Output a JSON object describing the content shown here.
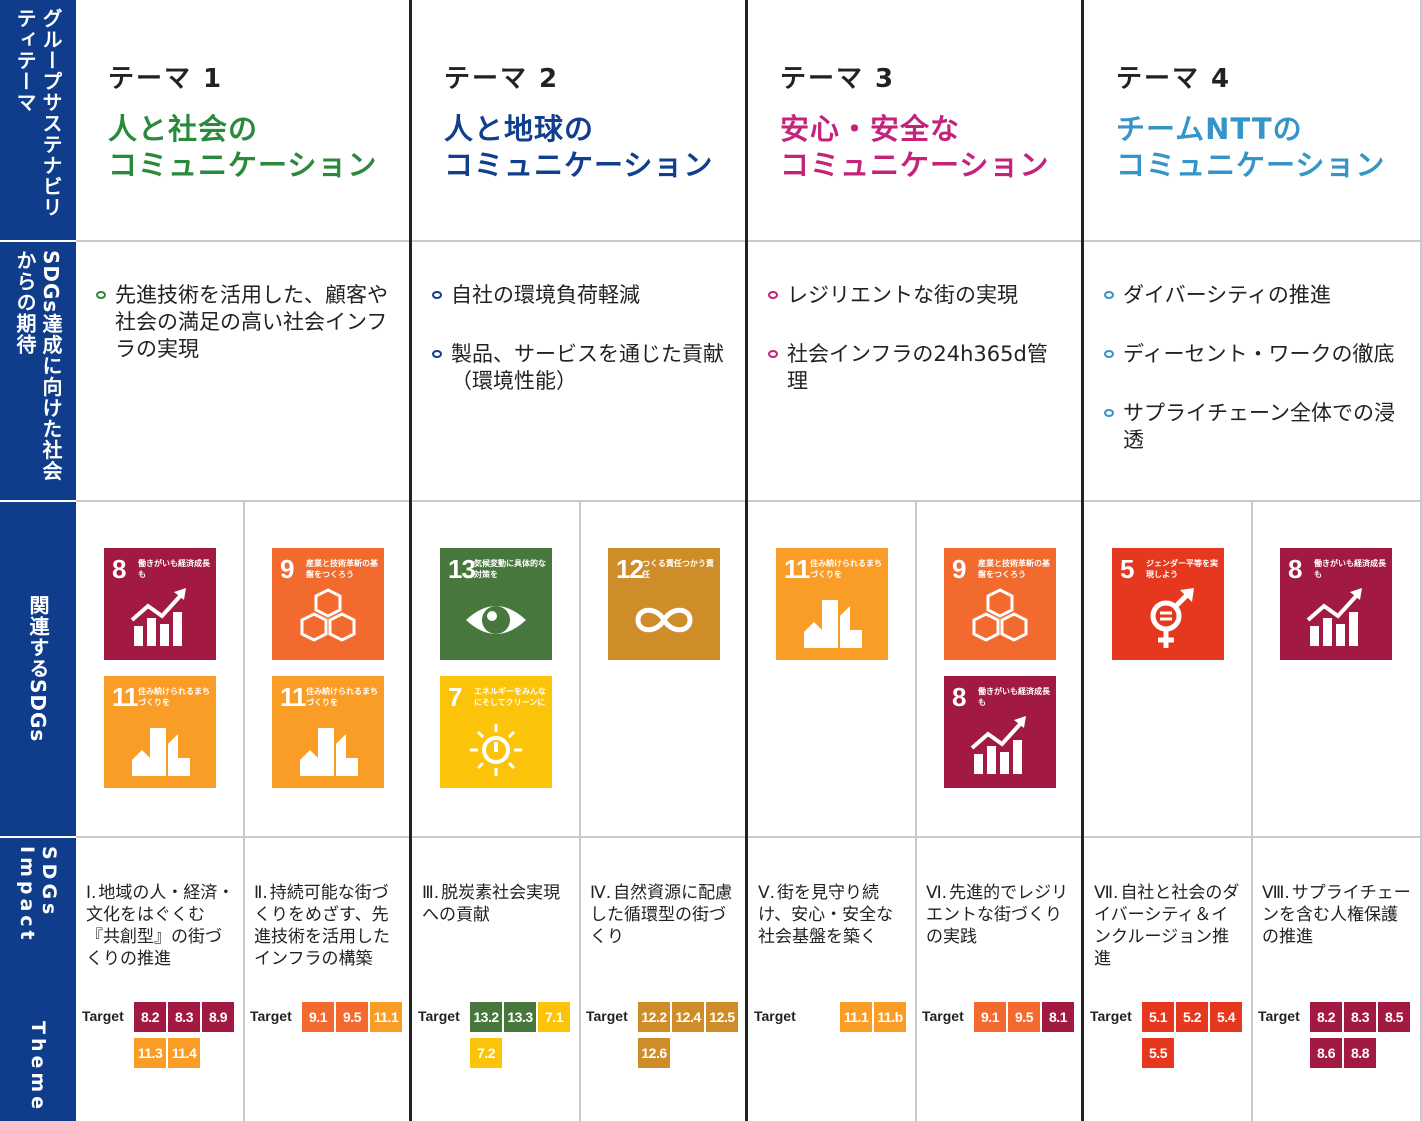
{
  "rowheads": {
    "theme": "グループサステナビリティテーマ",
    "expect": "SDGs達成に向けた社会からの期待",
    "sdgs": "関連するSDGs",
    "impact_ja": "SDGs Impact",
    "impact_en": "Theme"
  },
  "colors": {
    "green": "#2a8a3c",
    "navy": "#123f8d",
    "magenta": "#c4237c",
    "sky": "#3594c8",
    "sdg5": "#e5381f",
    "sdg7": "#fcc30b",
    "sdg8": "#a21942",
    "sdg9": "#f26a2d",
    "sdg11": "#f99d26",
    "sdg12": "#cf8d2a",
    "sdg13": "#48773e"
  },
  "themes": [
    {
      "num": "テーマ 1",
      "title1": "人と社会の",
      "title2": "コミュニケーション",
      "expect": [
        "先進技術を活用した、顧客や社会の満足の高い社会インフラの実現"
      ],
      "impacts": [
        {
          "roman": "Ⅰ.",
          "text": "地域の人・経済・文化をはぐくむ『共創型』の街づくりの推進",
          "label": "Target",
          "targets": [
            "8.2",
            "8.3",
            "8.9",
            "11.3",
            "11.4"
          ]
        },
        {
          "roman": "Ⅱ.",
          "text": "持続可能な街づくりをめざす、先進技術を活用したインフラの構築",
          "label": "Target",
          "targets": [
            "9.1",
            "9.5",
            "11.1"
          ]
        }
      ]
    },
    {
      "num": "テーマ 2",
      "title1": "人と地球の",
      "title2": "コミュニケーション",
      "expect": [
        "自社の環境負荷軽減",
        "製品、サービスを通じた貢献（環境性能）"
      ],
      "impacts": [
        {
          "roman": "Ⅲ.",
          "text": "脱炭素社会実現への貢献",
          "label": "Target",
          "targets": [
            "13.2",
            "13.3",
            "7.1",
            "7.2"
          ]
        },
        {
          "roman": "Ⅳ.",
          "text": "自然資源に配慮した循環型の街づくり",
          "label": "Target",
          "targets": [
            "12.2",
            "12.4",
            "12.5",
            "12.6"
          ]
        }
      ]
    },
    {
      "num": "テーマ 3",
      "title1": "安心・安全な",
      "title2": "コミュニケーション",
      "expect": [
        "レジリエントな街の実現",
        "社会インフラの24h365d管理"
      ],
      "impacts": [
        {
          "roman": "Ⅴ.",
          "text": "街を見守り続け、安心・安全な社会基盤を築く",
          "label": "Target",
          "targets": [
            "11.1",
            "11.b"
          ]
        },
        {
          "roman": "Ⅵ.",
          "text": "先進的でレジリエントな街づくりの実践",
          "label": "Target",
          "targets": [
            "9.1",
            "9.5",
            "8.1"
          ]
        }
      ]
    },
    {
      "num": "テーマ 4",
      "title1": "チームNTTの",
      "title2": "コミュニケーション",
      "expect": [
        "ダイバーシティの推進",
        "ディーセント・ワークの徹底",
        "サプライチェーン全体での浸透"
      ],
      "impacts": [
        {
          "roman": "Ⅶ.",
          "text": "自社と社会のダイバーシティ＆インクルージョン推進",
          "label": "Target",
          "targets": [
            "5.1",
            "5.2",
            "5.4",
            "5.5"
          ]
        },
        {
          "roman": "Ⅷ.",
          "text": "サプライチェーンを含む人権保護の推進",
          "label": "Target",
          "targets": [
            "8.2",
            "8.3",
            "8.5",
            "8.6",
            "8.8"
          ]
        }
      ]
    }
  ],
  "sdg_labels": {
    "g5": {
      "num": "5",
      "label": "ジェンダー平等を実現しよう",
      "icon": "gender-icon"
    },
    "g7": {
      "num": "7",
      "label": "エネルギーをみんなにそしてクリーンに",
      "icon": "sun-power-icon"
    },
    "g8": {
      "num": "8",
      "label": "働きがいも経済成長も",
      "icon": "growth-chart-icon"
    },
    "g9": {
      "num": "9",
      "label": "産業と技術革新の基盤をつくろう",
      "icon": "cubes-icon"
    },
    "g11": {
      "num": "11",
      "label": "住み続けられるまちづくりを",
      "icon": "city-icon"
    },
    "g12": {
      "num": "12",
      "label": "つくる責任つかう責任",
      "icon": "infinity-icon"
    },
    "g13": {
      "num": "13",
      "label": "気候変動に具体的な対策を",
      "icon": "earth-eye-icon"
    }
  }
}
